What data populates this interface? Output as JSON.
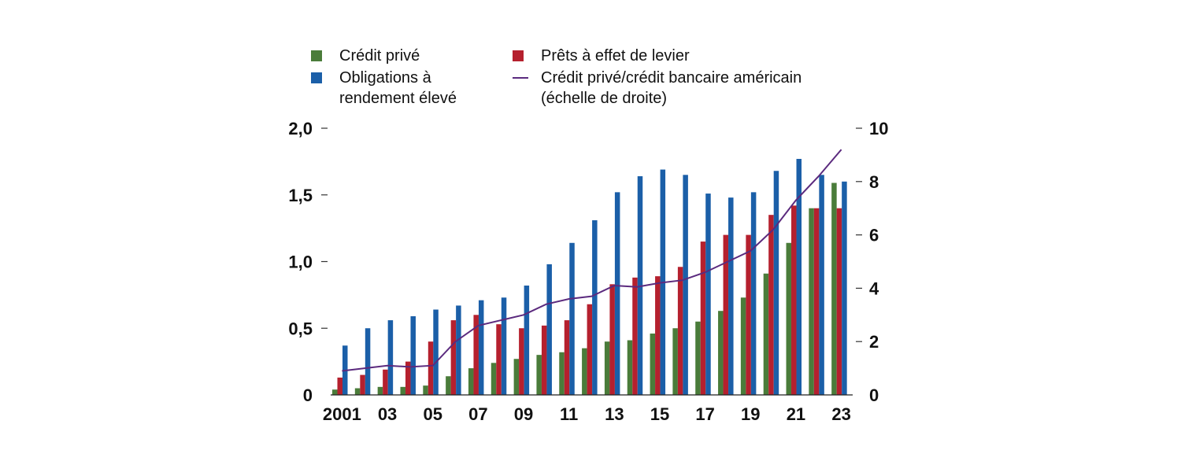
{
  "chart_data": {
    "type": "bar",
    "categories": [
      "2001",
      "02",
      "03",
      "04",
      "05",
      "06",
      "07",
      "08",
      "09",
      "10",
      "11",
      "12",
      "13",
      "14",
      "15",
      "16",
      "17",
      "18",
      "19",
      "20",
      "21",
      "22",
      "23"
    ],
    "x_tick_labels": [
      "2001",
      "03",
      "05",
      "07",
      "09",
      "11",
      "13",
      "15",
      "17",
      "19",
      "21",
      "23"
    ],
    "y_left": {
      "ylim": [
        0,
        2.0
      ],
      "ticks": [
        "0",
        "0,5",
        "1,0",
        "1,5",
        "2,0"
      ],
      "tick_values": [
        0,
        0.5,
        1.0,
        1.5,
        2.0
      ]
    },
    "y_right": {
      "ylim": [
        0,
        10
      ],
      "ticks": [
        "0",
        "2",
        "4",
        "6",
        "8",
        "10"
      ],
      "tick_values": [
        0,
        2,
        4,
        6,
        8,
        10
      ]
    },
    "series": [
      {
        "name": "Crédit privé",
        "axis": "left",
        "type": "bar",
        "color": "#4a7c3a",
        "values": [
          0.04,
          0.05,
          0.06,
          0.06,
          0.07,
          0.14,
          0.2,
          0.24,
          0.27,
          0.3,
          0.32,
          0.35,
          0.4,
          0.41,
          0.46,
          0.5,
          0.55,
          0.63,
          0.73,
          0.91,
          1.14,
          1.4,
          1.59
        ]
      },
      {
        "name": "Prêts à effet de levier",
        "axis": "left",
        "type": "bar",
        "color": "#b5202e",
        "values": [
          0.13,
          0.15,
          0.19,
          0.25,
          0.4,
          0.56,
          0.6,
          0.53,
          0.5,
          0.52,
          0.56,
          0.68,
          0.83,
          0.88,
          0.89,
          0.96,
          1.15,
          1.2,
          1.2,
          1.35,
          1.42,
          1.4,
          1.4
        ]
      },
      {
        "name": "Obligations à\nrendement élevé",
        "axis": "left",
        "type": "bar",
        "color": "#1b5fa8",
        "values": [
          0.37,
          0.5,
          0.56,
          0.59,
          0.64,
          0.67,
          0.71,
          0.73,
          0.82,
          0.98,
          1.14,
          1.31,
          1.52,
          1.64,
          1.69,
          1.65,
          1.51,
          1.48,
          1.52,
          1.68,
          1.77,
          1.65,
          1.6
        ]
      },
      {
        "name": "Crédit privé/crédit bancaire américain\n(échelle de droite)",
        "axis": "right",
        "type": "line",
        "color": "#5b2a7e",
        "values": [
          0.9,
          1.0,
          1.1,
          1.05,
          1.1,
          2.0,
          2.6,
          2.8,
          3.0,
          3.4,
          3.6,
          3.7,
          4.1,
          4.05,
          4.2,
          4.3,
          4.6,
          5.0,
          5.4,
          6.2,
          7.3,
          8.2,
          9.2
        ]
      }
    ],
    "legend": {
      "placement": "top"
    },
    "grid": false
  }
}
